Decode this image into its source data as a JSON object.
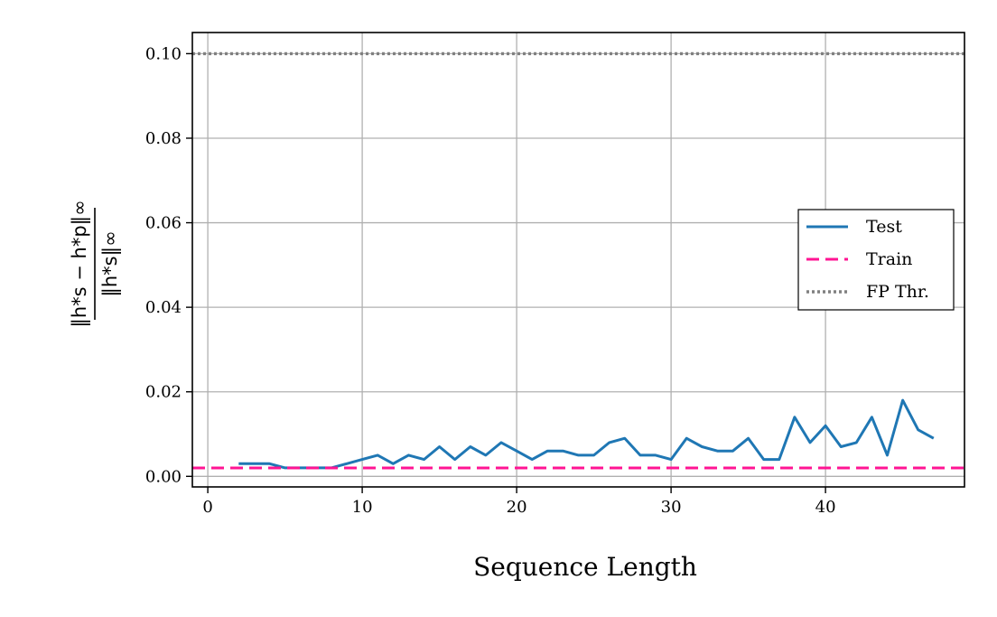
{
  "chart_data": {
    "type": "line",
    "xlabel": "Sequence Length",
    "ylabel": {
      "numerator": "‖h*s − h*p‖∞",
      "denominator": "‖h*s‖∞"
    },
    "xlim": [
      -1,
      49
    ],
    "ylim": [
      -0.0025,
      0.105
    ],
    "xticks": [
      0,
      10,
      20,
      30,
      40
    ],
    "yticks": [
      0.0,
      0.02,
      0.04,
      0.06,
      0.08,
      0.1
    ],
    "xtick_labels": [
      "0",
      "10",
      "20",
      "30",
      "40"
    ],
    "ytick_labels": [
      "0.00",
      "0.02",
      "0.04",
      "0.06",
      "0.08",
      "0.10"
    ],
    "grid": true,
    "legend_position": "center-right",
    "series": [
      {
        "name": "Test",
        "style": "solid",
        "color": "#1f77b4",
        "x": [
          2,
          3,
          4,
          5,
          6,
          7,
          8,
          9,
          10,
          11,
          12,
          13,
          14,
          15,
          16,
          17,
          18,
          19,
          20,
          21,
          22,
          23,
          24,
          25,
          26,
          27,
          28,
          29,
          30,
          31,
          32,
          33,
          34,
          35,
          36,
          37,
          38,
          39,
          40,
          41,
          42,
          43,
          44,
          45,
          46,
          47
        ],
        "y": [
          0.003,
          0.003,
          0.003,
          0.002,
          0.002,
          0.002,
          0.002,
          0.003,
          0.004,
          0.005,
          0.003,
          0.005,
          0.004,
          0.007,
          0.004,
          0.007,
          0.005,
          0.008,
          0.006,
          0.004,
          0.006,
          0.006,
          0.005,
          0.005,
          0.008,
          0.009,
          0.005,
          0.005,
          0.004,
          0.009,
          0.007,
          0.006,
          0.006,
          0.009,
          0.004,
          0.004,
          0.014,
          0.008,
          0.012,
          0.007,
          0.008,
          0.014,
          0.005,
          0.018,
          0.011,
          0.009
        ]
      },
      {
        "name": "Train",
        "style": "dashed",
        "color": "#ff1493",
        "y_constant": 0.002
      },
      {
        "name": "FP Thr.",
        "style": "dotted",
        "color": "#808080",
        "y_constant": 0.1
      }
    ]
  }
}
